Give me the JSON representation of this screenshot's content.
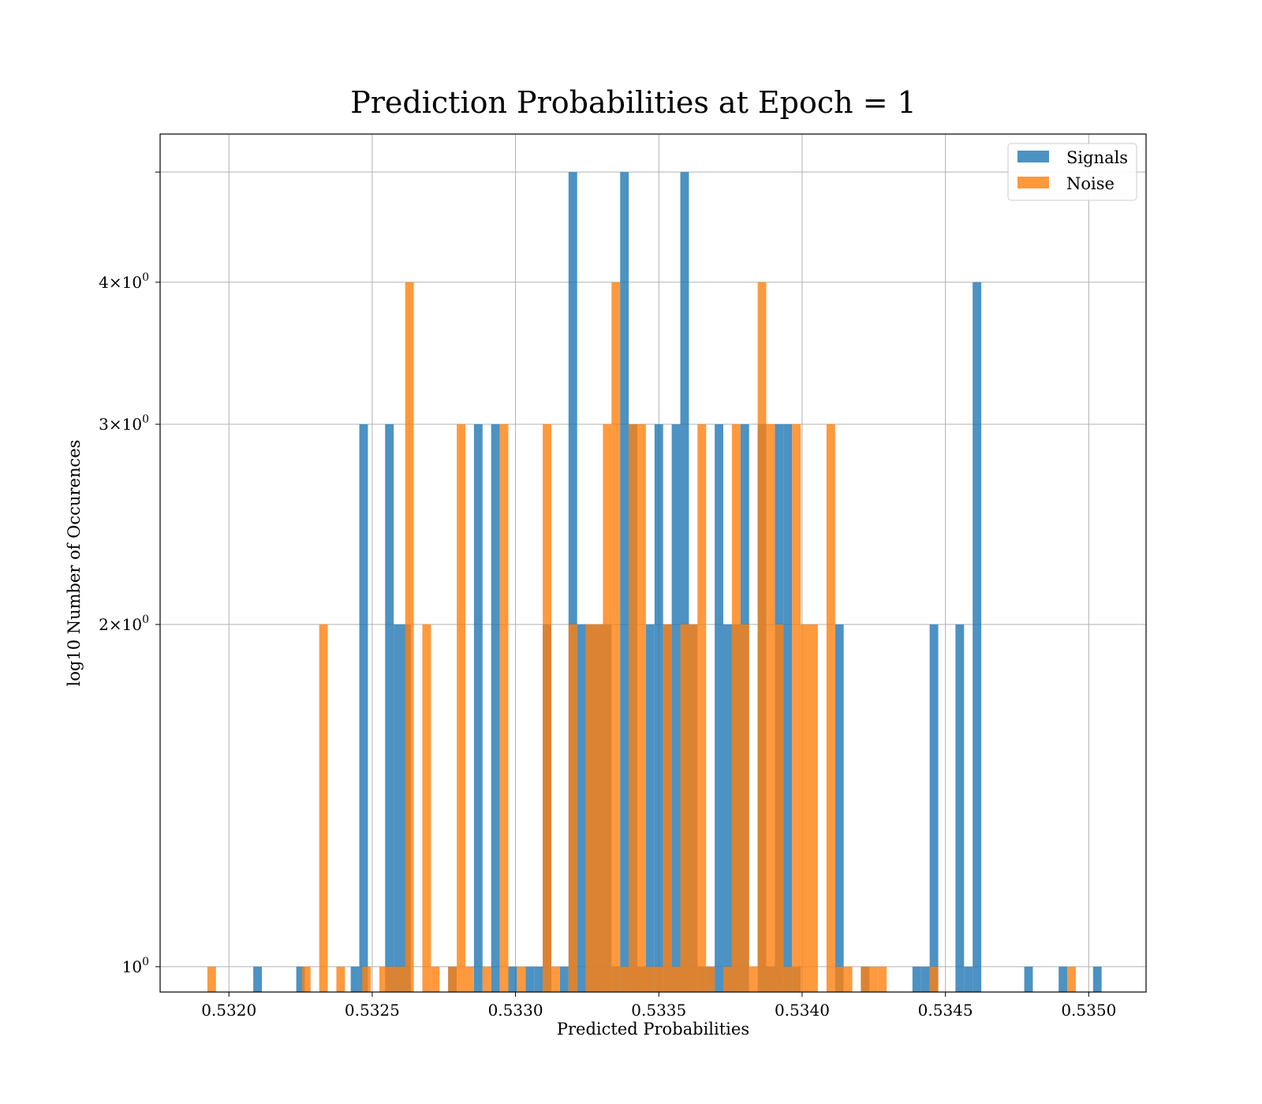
{
  "chart_data": {
    "type": "bar",
    "title": "Prediction Probabilities at Epoch = 1",
    "xlabel": "Predicted Probabilities",
    "ylabel": "log10 Number of Occurences",
    "x_scale": "linear",
    "y_scale": "log",
    "xlim": [
      0.53176,
      0.5352
    ],
    "ylim": [
      0.95,
      5.4
    ],
    "x_ticks": [
      0.532,
      0.5325,
      0.533,
      0.5335,
      0.534,
      0.5345,
      0.535
    ],
    "x_tick_labels": [
      "0.5320",
      "0.5325",
      "0.5330",
      "0.5335",
      "0.5340",
      "0.5345",
      "0.5350"
    ],
    "y_ticks": [
      1,
      2,
      3,
      4,
      5
    ],
    "y_tick_labels": [
      "10^0",
      "2×10^0",
      "3×10^0",
      "4×10^0",
      ""
    ],
    "grid": true,
    "legend_position": "top-right",
    "series": [
      {
        "name": "Signals",
        "color": "#1f77b4",
        "opacity": 0.8,
        "bin_width": 3e-05,
        "bars": [
          [
            0.5321,
            1
          ],
          [
            0.53225,
            1
          ],
          [
            0.53244,
            1
          ],
          [
            0.53247,
            3
          ],
          [
            0.53256,
            3
          ],
          [
            0.53259,
            2
          ],
          [
            0.53262,
            2
          ],
          [
            0.53278,
            1
          ],
          [
            0.53287,
            3
          ],
          [
            0.53293,
            3
          ],
          [
            0.53299,
            1
          ],
          [
            0.53305,
            1
          ],
          [
            0.53308,
            1
          ],
          [
            0.53311,
            2
          ],
          [
            0.53317,
            1
          ],
          [
            0.5332,
            5
          ],
          [
            0.53323,
            2
          ],
          [
            0.53326,
            2
          ],
          [
            0.53329,
            2
          ],
          [
            0.53332,
            2
          ],
          [
            0.53335,
            1
          ],
          [
            0.53338,
            5
          ],
          [
            0.53341,
            3
          ],
          [
            0.53344,
            1
          ],
          [
            0.53347,
            2
          ],
          [
            0.5335,
            3
          ],
          [
            0.53353,
            2
          ],
          [
            0.53356,
            3
          ],
          [
            0.53359,
            5
          ],
          [
            0.53362,
            2
          ],
          [
            0.53365,
            1
          ],
          [
            0.53368,
            1
          ],
          [
            0.53371,
            3
          ],
          [
            0.53374,
            2
          ],
          [
            0.53377,
            2
          ],
          [
            0.5338,
            3
          ],
          [
            0.53386,
            3
          ],
          [
            0.53389,
            1
          ],
          [
            0.53392,
            3
          ],
          [
            0.53395,
            3
          ],
          [
            0.53398,
            1
          ],
          [
            0.53413,
            2
          ],
          [
            0.53422,
            1
          ],
          [
            0.5344,
            1
          ],
          [
            0.53443,
            1
          ],
          [
            0.53446,
            2
          ],
          [
            0.53455,
            2
          ],
          [
            0.53458,
            1
          ],
          [
            0.53461,
            4
          ],
          [
            0.53479,
            1
          ],
          [
            0.53491,
            1
          ],
          [
            0.53503,
            1
          ]
        ]
      },
      {
        "name": "Noise",
        "color": "#ff7f0e",
        "opacity": 0.8,
        "bin_width": 3e-05,
        "bars": [
          [
            0.53194,
            1
          ],
          [
            0.53227,
            1
          ],
          [
            0.53233,
            2
          ],
          [
            0.53239,
            1
          ],
          [
            0.53248,
            1
          ],
          [
            0.53254,
            1
          ],
          [
            0.53257,
            1
          ],
          [
            0.5326,
            1
          ],
          [
            0.53263,
            4
          ],
          [
            0.53269,
            2
          ],
          [
            0.53272,
            1
          ],
          [
            0.53278,
            1
          ],
          [
            0.53281,
            3
          ],
          [
            0.53284,
            1
          ],
          [
            0.5329,
            1
          ],
          [
            0.53296,
            3
          ],
          [
            0.53302,
            1
          ],
          [
            0.53311,
            3
          ],
          [
            0.53314,
            1
          ],
          [
            0.5332,
            2
          ],
          [
            0.53326,
            2
          ],
          [
            0.53329,
            2
          ],
          [
            0.53332,
            3
          ],
          [
            0.53335,
            4
          ],
          [
            0.53338,
            1
          ],
          [
            0.53341,
            3
          ],
          [
            0.53344,
            3
          ],
          [
            0.53347,
            1
          ],
          [
            0.5335,
            1
          ],
          [
            0.53353,
            2
          ],
          [
            0.53356,
            1
          ],
          [
            0.53359,
            2
          ],
          [
            0.53362,
            2
          ],
          [
            0.53365,
            3
          ],
          [
            0.53368,
            1
          ],
          [
            0.53374,
            1
          ],
          [
            0.53377,
            3
          ],
          [
            0.5338,
            2
          ],
          [
            0.53383,
            1
          ],
          [
            0.53386,
            4
          ],
          [
            0.53389,
            3
          ],
          [
            0.53392,
            2
          ],
          [
            0.53395,
            1
          ],
          [
            0.53398,
            3
          ],
          [
            0.53401,
            2
          ],
          [
            0.53404,
            2
          ],
          [
            0.5341,
            3
          ],
          [
            0.53413,
            1
          ],
          [
            0.53416,
            1
          ],
          [
            0.53422,
            1
          ],
          [
            0.53425,
            1
          ],
          [
            0.53428,
            1
          ],
          [
            0.53446,
            1
          ],
          [
            0.53494,
            1
          ]
        ]
      }
    ]
  }
}
